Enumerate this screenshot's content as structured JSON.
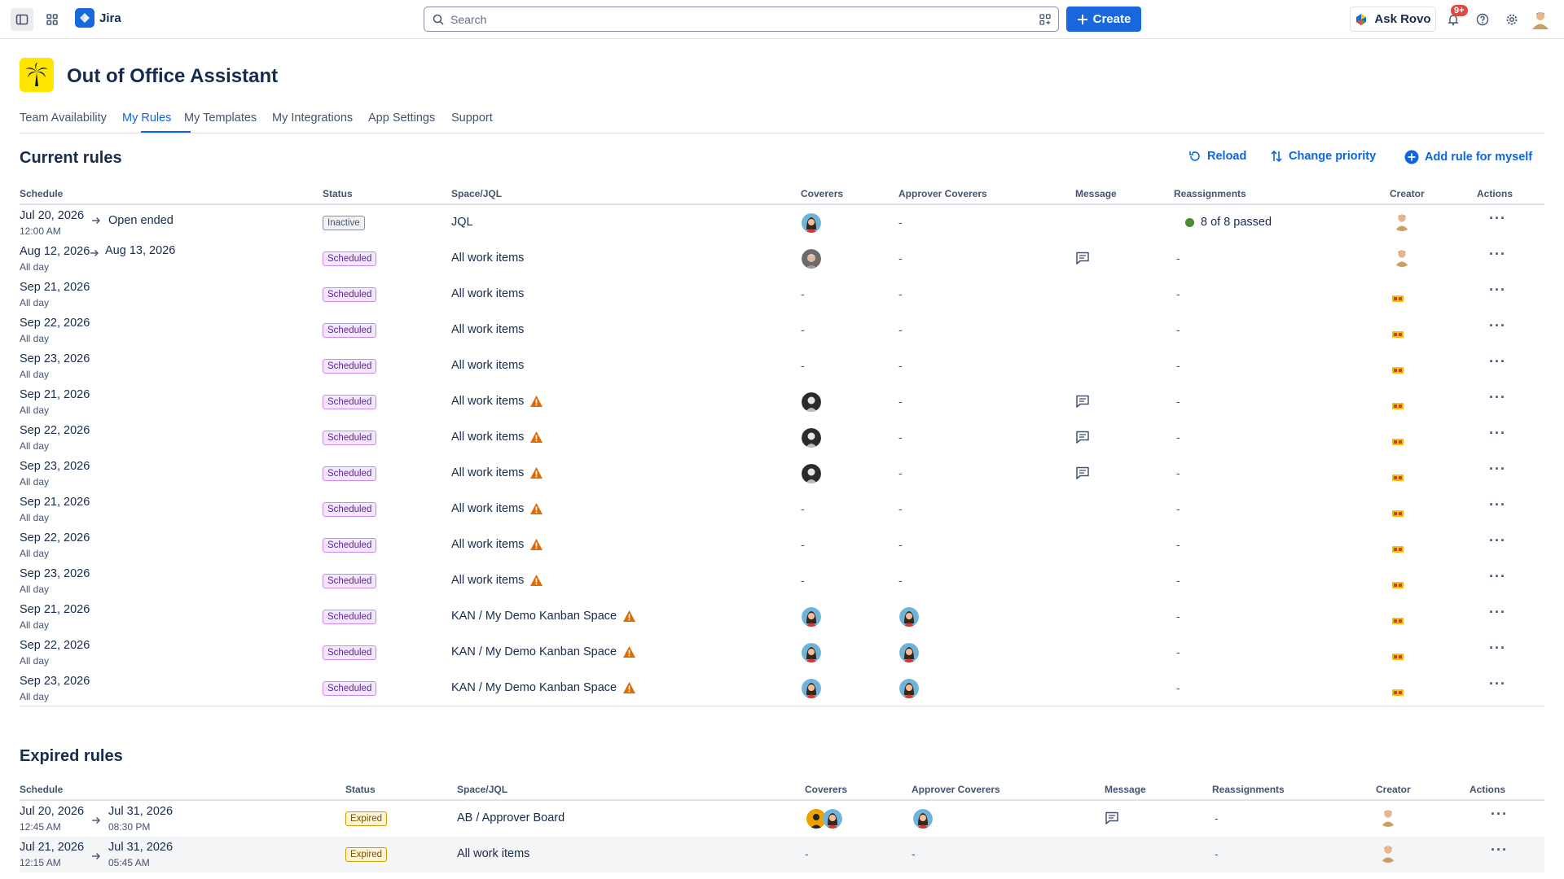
{
  "topnav": {
    "app_name": "Jira",
    "search_placeholder": "Search",
    "create_label": "Create",
    "ask_rovo_label": "Ask Rovo",
    "notification_badge": "9+",
    "icons": [
      "sidebar-toggle-icon",
      "app-switcher-icon",
      "search-icon",
      "filter-icon",
      "plus-icon",
      "rovo-icon",
      "bell-icon",
      "help-icon",
      "gear-icon"
    ]
  },
  "header": {
    "title": "Out of Office Assistant",
    "logo_icon": "palm-tree-icon",
    "logo_color": "#ffe600"
  },
  "tabs": [
    {
      "label": "Team Availability",
      "active": false
    },
    {
      "label": "My Rules",
      "active": true
    },
    {
      "label": "My Templates",
      "active": false
    },
    {
      "label": "My Integrations",
      "active": false
    },
    {
      "label": "App Settings",
      "active": false
    },
    {
      "label": "Support",
      "active": false
    }
  ],
  "current": {
    "title": "Current rules",
    "actions": {
      "reload": "Reload",
      "change_priority": "Change priority",
      "add_rule": "Add rule for myself"
    },
    "columns": [
      "Schedule",
      "Status",
      "Space/JQL",
      "Coverers",
      "Approver Coverers",
      "Message",
      "Reassignments",
      "Creator",
      "Actions"
    ],
    "rows": [
      {
        "start": "Jul 20, 2026",
        "end": "Open ended",
        "sub": "12:00 AM",
        "status": "Inactive",
        "space": "JQL",
        "warn": false,
        "coverer": "woman",
        "approver": "-",
        "message": false,
        "reassign": "8 of 8 passed",
        "creator": "man"
      },
      {
        "start": "Aug 12, 2026",
        "end": "Aug 13, 2026",
        "sub": "All day",
        "status": "Scheduled",
        "space": "All work items",
        "warn": false,
        "coverer": "old",
        "approver": "-",
        "message": true,
        "reassign": "-",
        "creator": "man"
      },
      {
        "start": "Sep 21, 2026",
        "end": "",
        "sub": "All day",
        "status": "Scheduled",
        "space": "All work items",
        "warn": false,
        "coverer": "-",
        "approver": "-",
        "message": false,
        "reassign": "-",
        "creator": "flag"
      },
      {
        "start": "Sep 22, 2026",
        "end": "",
        "sub": "All day",
        "status": "Scheduled",
        "space": "All work items",
        "warn": false,
        "coverer": "-",
        "approver": "-",
        "message": false,
        "reassign": "-",
        "creator": "flag"
      },
      {
        "start": "Sep 23, 2026",
        "end": "",
        "sub": "All day",
        "status": "Scheduled",
        "space": "All work items",
        "warn": false,
        "coverer": "-",
        "approver": "-",
        "message": false,
        "reassign": "-",
        "creator": "flag"
      },
      {
        "start": "Sep 21, 2026",
        "end": "",
        "sub": "All day",
        "status": "Scheduled",
        "space": "All work items",
        "warn": true,
        "coverer": "bw",
        "approver": "-",
        "message": true,
        "reassign": "-",
        "creator": "flag"
      },
      {
        "start": "Sep 22, 2026",
        "end": "",
        "sub": "All day",
        "status": "Scheduled",
        "space": "All work items",
        "warn": true,
        "coverer": "bw",
        "approver": "-",
        "message": true,
        "reassign": "-",
        "creator": "flag"
      },
      {
        "start": "Sep 23, 2026",
        "end": "",
        "sub": "All day",
        "status": "Scheduled",
        "space": "All work items",
        "warn": true,
        "coverer": "bw",
        "approver": "-",
        "message": true,
        "reassign": "-",
        "creator": "flag"
      },
      {
        "start": "Sep 21, 2026",
        "end": "",
        "sub": "All day",
        "status": "Scheduled",
        "space": "All work items",
        "warn": true,
        "coverer": "-",
        "approver": "-",
        "message": false,
        "reassign": "-",
        "creator": "flag"
      },
      {
        "start": "Sep 22, 2026",
        "end": "",
        "sub": "All day",
        "status": "Scheduled",
        "space": "All work items",
        "warn": true,
        "coverer": "-",
        "approver": "-",
        "message": false,
        "reassign": "-",
        "creator": "flag"
      },
      {
        "start": "Sep 23, 2026",
        "end": "",
        "sub": "All day",
        "status": "Scheduled",
        "space": "All work items",
        "warn": true,
        "coverer": "-",
        "approver": "-",
        "message": false,
        "reassign": "-",
        "creator": "flag"
      },
      {
        "start": "Sep 21, 2026",
        "end": "",
        "sub": "All day",
        "status": "Scheduled",
        "space": "KAN / My Demo Kanban Space",
        "warn": true,
        "coverer": "woman",
        "approver": "woman",
        "message": false,
        "reassign": "-",
        "creator": "flag"
      },
      {
        "start": "Sep 22, 2026",
        "end": "",
        "sub": "All day",
        "status": "Scheduled",
        "space": "KAN / My Demo Kanban Space",
        "warn": true,
        "coverer": "woman",
        "approver": "woman",
        "message": false,
        "reassign": "-",
        "creator": "flag"
      },
      {
        "start": "Sep 23, 2026",
        "end": "",
        "sub": "All day",
        "status": "Scheduled",
        "space": "KAN / My Demo Kanban Space",
        "warn": true,
        "coverer": "woman",
        "approver": "woman",
        "message": false,
        "reassign": "-",
        "creator": "flag"
      }
    ]
  },
  "expired": {
    "title": "Expired rules",
    "columns": [
      "Schedule",
      "Status",
      "Space/JQL",
      "Coverers",
      "Approver Coverers",
      "Message",
      "Reassignments",
      "Creator",
      "Actions"
    ],
    "rows": [
      {
        "start": "Jul 20, 2026",
        "start_time": "12:45 AM",
        "end": "Jul 31, 2026",
        "end_time": "08:30 PM",
        "status": "Expired",
        "space": "AB / Approver Board",
        "coverer": "pair",
        "approver": "woman",
        "message": true,
        "reassign": "-",
        "creator": "man"
      },
      {
        "start": "Jul 21, 2026",
        "start_time": "12:15 AM",
        "end": "Jul 31, 2026",
        "end_time": "05:45 AM",
        "status": "Expired",
        "space": "All work items",
        "coverer": "-",
        "approver": "-",
        "message": false,
        "reassign": "-",
        "creator": "man"
      }
    ]
  },
  "colors": {
    "primary": "#1868db",
    "link": "#0c66e4",
    "passed_dot": "#4c8a2f",
    "warning": "#e06c00"
  }
}
